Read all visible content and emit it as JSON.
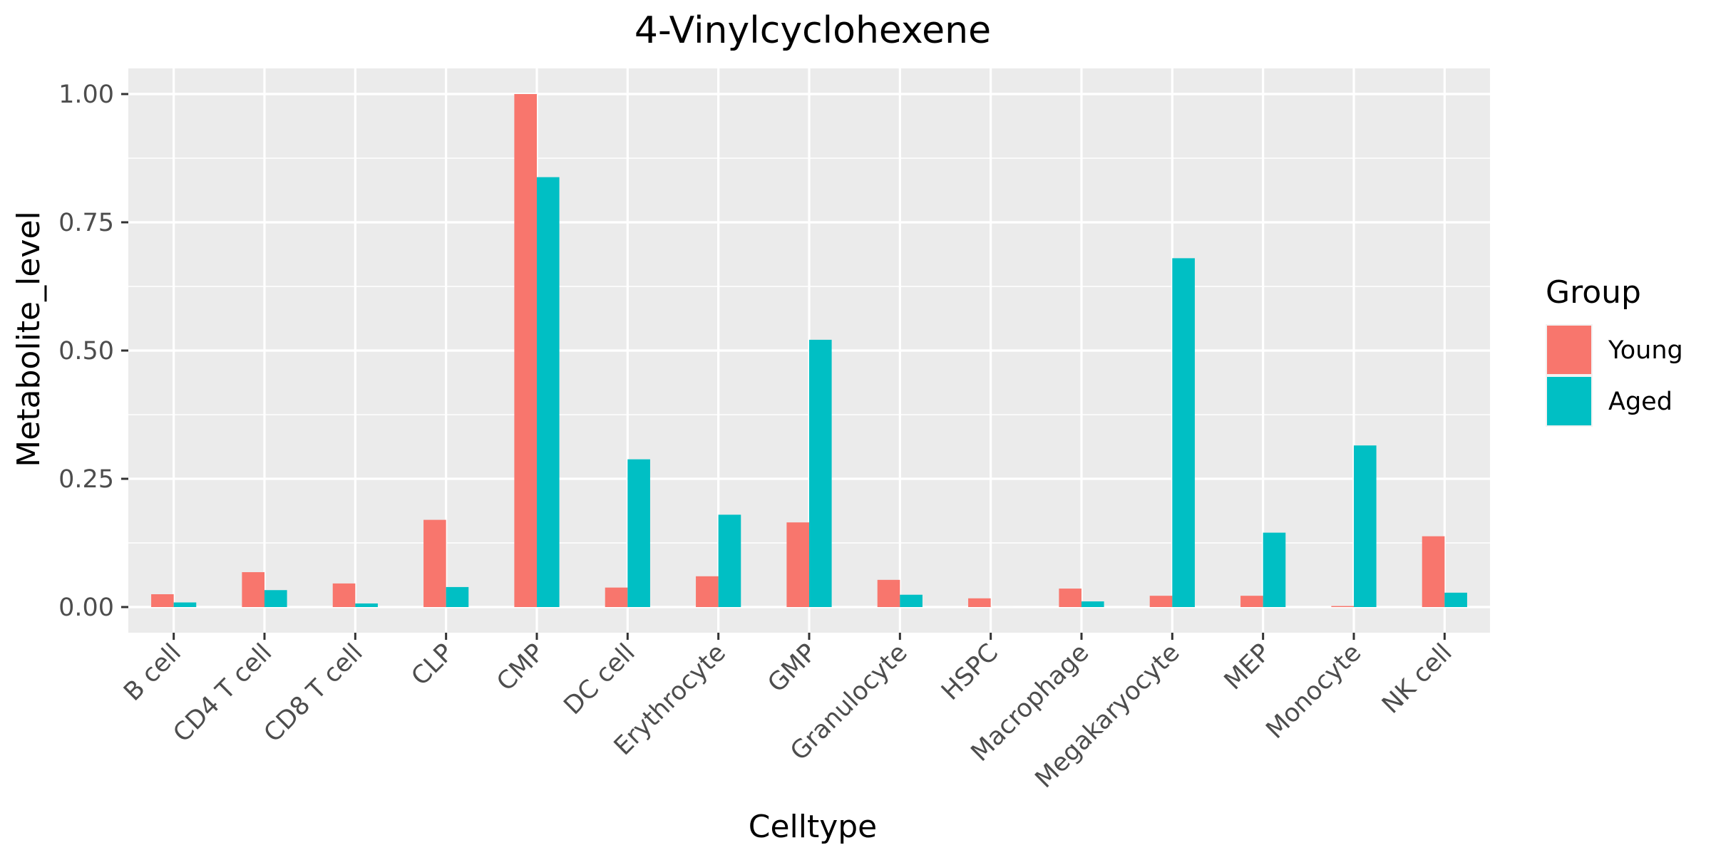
{
  "chart_data": {
    "type": "bar",
    "title": "4-Vinylcyclohexene",
    "xlabel": "Celltype",
    "ylabel": "Metabolite_level",
    "ylim": [
      -0.05,
      1.05
    ],
    "yticks": [
      0,
      0.25,
      0.5,
      0.75,
      1
    ],
    "ytick_labels": [
      "0.00",
      "0.25",
      "0.50",
      "0.75",
      "1.00"
    ],
    "grid": true,
    "legend": {
      "title": "Group",
      "position": "right"
    },
    "categories": [
      "B cell",
      "CD4 T cell",
      "CD8 T cell",
      "CLP",
      "CMP",
      "DC cell",
      "Erythrocyte",
      "GMP",
      "Granulocyte",
      "HSPC",
      "Macrophage",
      "Megakaryocyte",
      "MEP",
      "Monocyte",
      "NK cell"
    ],
    "series": [
      {
        "name": "Young",
        "color": "#F8766D",
        "values": [
          0.025,
          0.068,
          0.046,
          0.17,
          1.0,
          0.038,
          0.06,
          0.165,
          0.053,
          0.017,
          0.036,
          0.022,
          0.022,
          0.002,
          0.138
        ]
      },
      {
        "name": "Aged",
        "color": "#00BFC4",
        "values": [
          0.009,
          0.033,
          0.007,
          0.039,
          0.838,
          0.288,
          0.18,
          0.521,
          0.024,
          0.0,
          0.011,
          0.68,
          0.145,
          0.315,
          0.028
        ]
      }
    ]
  }
}
